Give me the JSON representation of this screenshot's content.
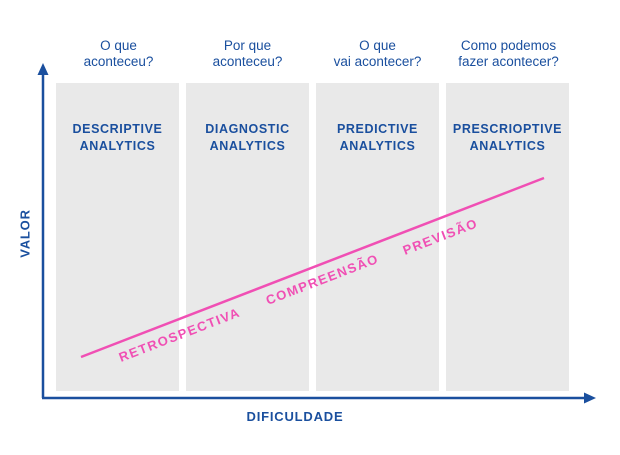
{
  "columns": [
    {
      "question": [
        "O que",
        "aconteceu?"
      ],
      "title": [
        "DESCRIPTIVE",
        "ANALYTICS"
      ]
    },
    {
      "question": [
        "Por que",
        "aconteceu?"
      ],
      "title": [
        "DIAGNOSTIC",
        "ANALYTICS"
      ]
    },
    {
      "question": [
        "O que",
        "vai acontecer?"
      ],
      "title": [
        "PREDICTIVE",
        "ANALYTICS"
      ]
    },
    {
      "question": [
        "Como podemos",
        "fazer acontecer?"
      ],
      "title": [
        "PRESCRIOPTIVE",
        "ANALYTICS"
      ]
    }
  ],
  "axes": {
    "x_label": "DIFICULDADE",
    "y_label": "VALOR"
  },
  "stages": [
    "RETROSPECTIVA",
    "COMPREENSÃO",
    "PREVISÃO"
  ],
  "colors": {
    "blue": "#1a4f9e",
    "panel": "#e9e9e9",
    "trend": "#f04fb4"
  }
}
